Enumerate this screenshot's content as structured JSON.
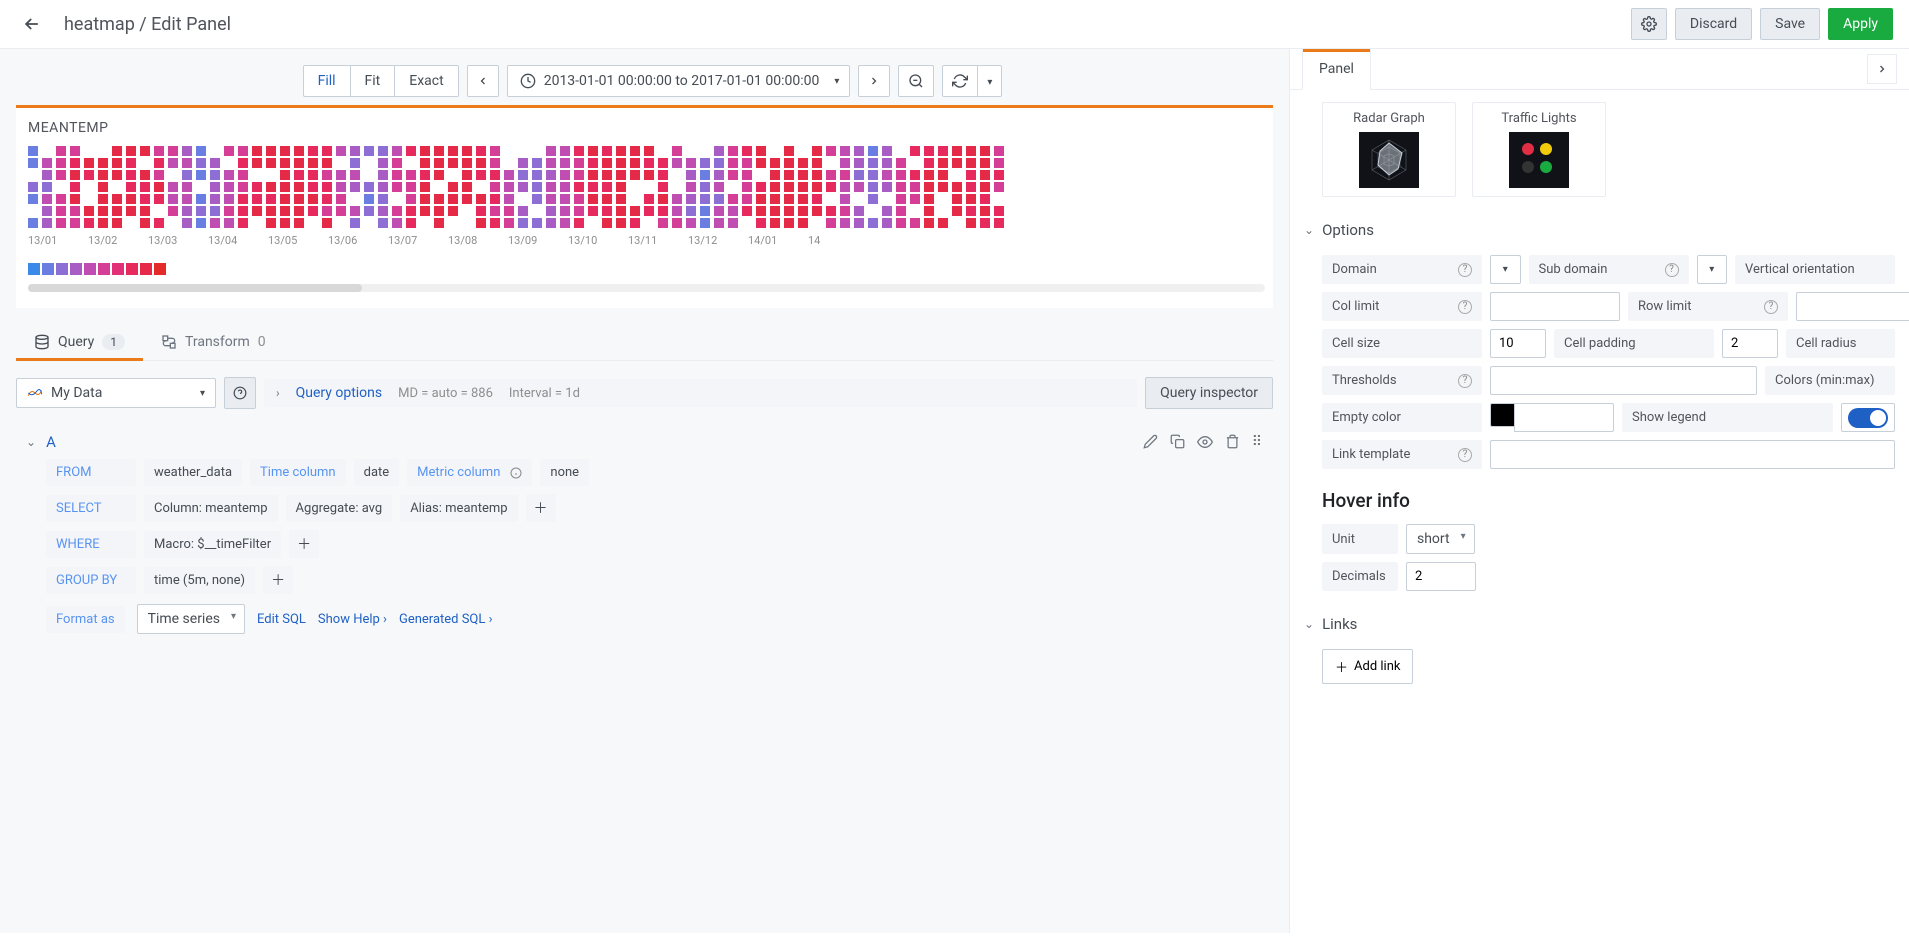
{
  "breadcrumb": "heatmap / Edit Panel",
  "topButtons": {
    "discard": "Discard",
    "save": "Save",
    "apply": "Apply"
  },
  "fitBar": {
    "fill": "Fill",
    "fit": "Fit",
    "exact": "Exact"
  },
  "timeRange": "2013-01-01 00:00:00 to 2017-01-01 00:00:00",
  "panel": {
    "title": "MEANTEMP",
    "xlabels": [
      "13/01",
      "13/02",
      "13/03",
      "13/04",
      "13/05",
      "13/06",
      "13/07",
      "13/08",
      "13/09",
      "13/10",
      "13/11",
      "13/12",
      "14/01",
      "14"
    ],
    "cellSize": 10,
    "legendColors": [
      "#3c8ae8",
      "#6a7de0",
      "#8c6ed4",
      "#a85dc5",
      "#c04db1",
      "#d43e97",
      "#e23078",
      "#e62a5e",
      "#e62a48",
      "#e52a2a"
    ]
  },
  "heatmap": {
    "rows": 7,
    "cols": 70,
    "emptyProb": 0.12,
    "palette": [
      "#e52a48",
      "#e62a5e",
      "#d43e97",
      "#c04db1",
      "#a85dc5",
      "#8c6ed4",
      "#6a7de0"
    ]
  },
  "tabs": {
    "query": "Query",
    "queryCount": "1",
    "transform": "Transform",
    "transformCount": "0"
  },
  "datasource": "My Data",
  "queryOptions": {
    "label": "Query options",
    "md": "MD = auto = 886",
    "interval": "Interval = 1d"
  },
  "queryInspector": "Query inspector",
  "queryA": {
    "letter": "A",
    "from": "FROM",
    "fromTable": "weather_data",
    "timeCol": "Time column",
    "dateVal": "date",
    "metricCol": "Metric column",
    "noneVal": "none",
    "select": "SELECT",
    "column": "Column: meantemp",
    "aggregate": "Aggregate: avg",
    "alias": "Alias: meantemp",
    "where": "WHERE",
    "macro": "Macro: $__timeFilter",
    "groupby": "GROUP BY",
    "time": "time (5m, none)",
    "formatAs": "Format as",
    "formatVal": "Time series",
    "editSql": "Edit SQL",
    "showHelp": "Show Help",
    "genSql": "Generated SQL"
  },
  "rightTab": "Panel",
  "viz": {
    "radar": "Radar Graph",
    "traffic": "Traffic Lights"
  },
  "sections": {
    "options": "Options",
    "links": "Links",
    "hover": "Hover info"
  },
  "opts": {
    "domain": "Domain",
    "subdomain": "Sub domain",
    "vorient": "Vertical orientation",
    "collimit": "Col limit",
    "rowlimit": "Row limit",
    "cellsize": "Cell size",
    "cellsizeVal": "10",
    "cellpad": "Cell padding",
    "cellpadVal": "2",
    "cellradius": "Cell radius",
    "thresholds": "Thresholds",
    "colorsMinMax": "Colors (min:max)",
    "emptycolor": "Empty color",
    "showlegend": "Show legend",
    "linktpl": "Link template"
  },
  "hover": {
    "unit": "Unit",
    "unitVal": "short",
    "decimals": "Decimals",
    "decimalsVal": "2"
  },
  "addLink": "Add link"
}
